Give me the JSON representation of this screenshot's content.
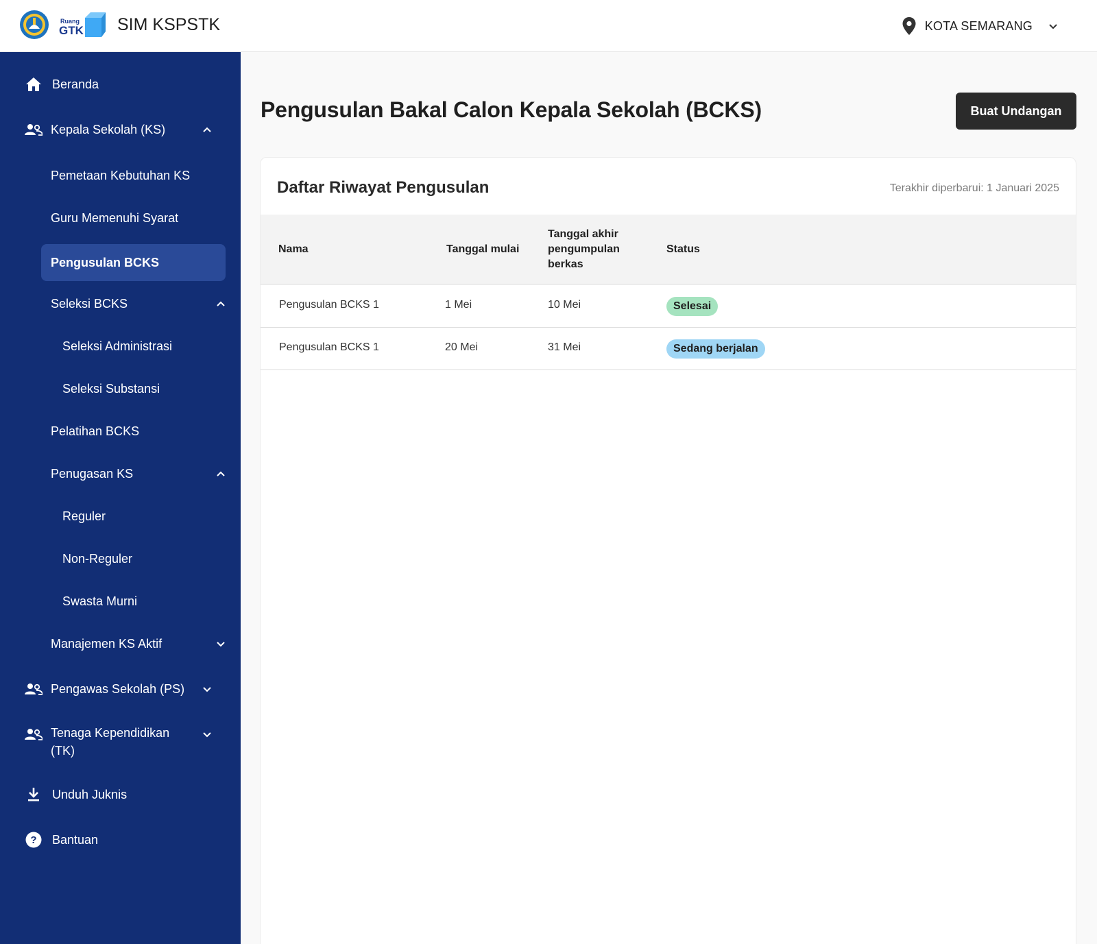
{
  "header": {
    "logo_ruang": "Ruang",
    "logo_gtk": "GTK",
    "app_title": "SIM KSPSTK",
    "region": "KOTA SEMARANG",
    "icons": {
      "location": "location-pin-icon",
      "dropdown": "chevron-down-icon"
    }
  },
  "sidebar": {
    "items": {
      "beranda": "Beranda",
      "kepala_sekolah": "Kepala Sekolah (KS)",
      "pemetaan": "Pemetaan Kebutuhan KS",
      "guru_syarat": "Guru Memenuhi Syarat",
      "pengusulan": "Pengusulan BCKS",
      "seleksi": "Seleksi BCKS",
      "seleksi_admin": "Seleksi Administrasi",
      "seleksi_substansi": "Seleksi Substansi",
      "pelatihan": "Pelatihan BCKS",
      "penugasan": "Penugasan KS",
      "reguler": "Reguler",
      "non_reguler": "Non-Reguler",
      "swasta": "Swasta Murni",
      "manajemen": "Manajemen KS Aktif",
      "pengawas": "Pengawas Sekolah (PS)",
      "tenaga_line1": "Tenaga Kependidikan",
      "tenaga_line2": "(TK)",
      "unduh": "Unduh Juknis",
      "bantuan": "Bantuan"
    },
    "active": "Pengusulan BCKS"
  },
  "main": {
    "title": "Pengusulan Bakal Calon Kepala Sekolah (BCKS)",
    "create_button": "Buat Undangan",
    "card": {
      "title": "Daftar Riwayat Pengusulan",
      "updated": "Terakhir diperbarui: 1 Januari 2025",
      "columns": {
        "nama": "Nama",
        "mulai": "Tanggal mulai",
        "akhir_l1": "Tanggal akhir",
        "akhir_l2": "pengumpulan",
        "akhir_l3": "berkas",
        "status": "Status"
      },
      "rows": [
        {
          "nama": "Pengusulan BCKS 1",
          "mulai": "1 Mei",
          "akhir": "10 Mei",
          "status": "Selesai",
          "status_color": "#a5e3bf"
        },
        {
          "nama": "Pengusulan BCKS 1",
          "mulai": "20 Mei",
          "akhir": "31 Mei",
          "status": "Sedang berjalan",
          "status_color": "#9fd6f5"
        }
      ]
    }
  },
  "colors": {
    "sidebar": "#122e75",
    "sidebar_active": "#2a4a98",
    "primary_button": "#2b2b2b"
  }
}
